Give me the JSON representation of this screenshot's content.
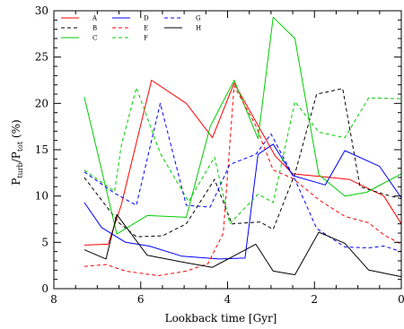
{
  "chart_data": {
    "type": "line",
    "title": "",
    "xlabel": "Lookback time [Gyr]",
    "ylabel": {
      "main": "P",
      "sub1": "turb",
      "mid": "/P",
      "sub2": "tot",
      "tail": " (%)"
    },
    "xlim": [
      8,
      0
    ],
    "ylim": [
      0,
      30
    ],
    "xticks": [
      8,
      6,
      4,
      2,
      0
    ],
    "yticks": [
      0,
      5,
      10,
      15,
      20,
      25,
      30
    ],
    "grid": false,
    "legend": {
      "placement": "top-left",
      "columns": 3
    },
    "series": [
      {
        "name": "A",
        "color": "#ff0000",
        "dash": "solid",
        "points": [
          [
            7.3,
            4.7
          ],
          [
            6.75,
            4.8
          ],
          [
            6.45,
            9.0
          ],
          [
            5.75,
            22.5
          ],
          [
            4.95,
            20.0
          ],
          [
            4.35,
            16.3
          ],
          [
            3.85,
            22.2
          ],
          [
            2.9,
            14.3
          ],
          [
            2.5,
            12.4
          ],
          [
            1.2,
            11.8
          ],
          [
            0.4,
            10.0
          ],
          [
            0.0,
            7.0
          ]
        ]
      },
      {
        "name": "B",
        "color": "#000000",
        "dash": "dashed",
        "points": [
          [
            7.3,
            12.0
          ],
          [
            6.5,
            7.1
          ],
          [
            6.1,
            5.6
          ],
          [
            5.5,
            5.7
          ],
          [
            4.95,
            7.0
          ],
          [
            4.3,
            11.8
          ],
          [
            4.15,
            10.0
          ],
          [
            3.9,
            7.0
          ],
          [
            3.25,
            7.2
          ],
          [
            2.95,
            6.4
          ],
          [
            2.45,
            12.4
          ],
          [
            1.95,
            21.0
          ],
          [
            1.35,
            21.6
          ],
          [
            0.95,
            11.0
          ],
          [
            0.4,
            10.2
          ],
          [
            0.0,
            9.7
          ]
        ]
      },
      {
        "name": "C",
        "color": "#00cc00",
        "dash": "solid",
        "points": [
          [
            7.3,
            20.7
          ],
          [
            6.55,
            5.9
          ],
          [
            5.85,
            7.9
          ],
          [
            4.95,
            7.7
          ],
          [
            4.4,
            17.5
          ],
          [
            3.85,
            22.5
          ],
          [
            3.3,
            16.2
          ],
          [
            2.95,
            29.3
          ],
          [
            2.45,
            27.0
          ],
          [
            1.9,
            12.3
          ],
          [
            1.3,
            10.0
          ],
          [
            0.8,
            10.4
          ],
          [
            0.0,
            12.4
          ]
        ]
      },
      {
        "name": "D",
        "color": "#0000ff",
        "dash": "solid",
        "points": [
          [
            7.3,
            9.3
          ],
          [
            6.9,
            6.6
          ],
          [
            6.35,
            5.0
          ],
          [
            5.8,
            4.6
          ],
          [
            5.05,
            3.5
          ],
          [
            4.2,
            3.2
          ],
          [
            3.6,
            3.3
          ],
          [
            3.3,
            14.5
          ],
          [
            2.95,
            15.6
          ],
          [
            2.5,
            12.2
          ],
          [
            1.75,
            11.2
          ],
          [
            1.3,
            14.9
          ],
          [
            0.5,
            13.2
          ],
          [
            0.0,
            9.8
          ]
        ]
      },
      {
        "name": "E",
        "color": "#ff0000",
        "dash": "dashed",
        "points": [
          [
            7.3,
            2.4
          ],
          [
            6.8,
            2.6
          ],
          [
            6.35,
            1.9
          ],
          [
            5.6,
            1.4
          ],
          [
            4.95,
            1.9
          ],
          [
            4.45,
            2.7
          ],
          [
            4.1,
            6.0
          ],
          [
            3.85,
            21.9
          ],
          [
            3.35,
            17.6
          ],
          [
            2.95,
            12.8
          ],
          [
            2.5,
            11.9
          ],
          [
            1.9,
            9.6
          ],
          [
            1.3,
            7.8
          ],
          [
            0.75,
            7.1
          ],
          [
            0.4,
            5.8
          ],
          [
            0.0,
            4.8
          ]
        ]
      },
      {
        "name": "F",
        "color": "#00cc00",
        "dash": "dashed",
        "points": [
          [
            7.3,
            12.8
          ],
          [
            6.6,
            10.5
          ],
          [
            6.45,
            15.4
          ],
          [
            6.1,
            21.7
          ],
          [
            5.55,
            14.6
          ],
          [
            4.9,
            9.4
          ],
          [
            4.3,
            14.2
          ],
          [
            3.95,
            7.0
          ],
          [
            3.3,
            10.2
          ],
          [
            2.95,
            9.3
          ],
          [
            2.45,
            20.2
          ],
          [
            1.9,
            16.9
          ],
          [
            1.3,
            16.3
          ],
          [
            0.75,
            20.6
          ],
          [
            0.0,
            20.5
          ]
        ]
      },
      {
        "name": "G",
        "color": "#0000ff",
        "dash": "dashed",
        "points": [
          [
            7.3,
            12.6
          ],
          [
            6.6,
            10.3
          ],
          [
            6.1,
            9.0
          ],
          [
            5.55,
            20.0
          ],
          [
            4.95,
            9.0
          ],
          [
            4.4,
            8.8
          ],
          [
            3.95,
            13.4
          ],
          [
            3.35,
            14.5
          ],
          [
            3.0,
            16.7
          ],
          [
            2.45,
            11.8
          ],
          [
            1.95,
            6.5
          ],
          [
            1.3,
            4.5
          ],
          [
            0.75,
            4.4
          ],
          [
            0.4,
            4.6
          ],
          [
            0.0,
            4.0
          ]
        ]
      },
      {
        "name": "H",
        "color": "#000000",
        "dash": "solid",
        "points": [
          [
            7.3,
            4.2
          ],
          [
            6.8,
            3.2
          ],
          [
            6.55,
            8.0
          ],
          [
            5.85,
            3.6
          ],
          [
            4.95,
            2.8
          ],
          [
            4.35,
            2.3
          ],
          [
            3.35,
            4.8
          ],
          [
            2.95,
            1.9
          ],
          [
            2.45,
            1.5
          ],
          [
            1.9,
            6.1
          ],
          [
            1.3,
            4.9
          ],
          [
            0.75,
            2.0
          ],
          [
            0.0,
            1.3
          ]
        ]
      }
    ]
  }
}
